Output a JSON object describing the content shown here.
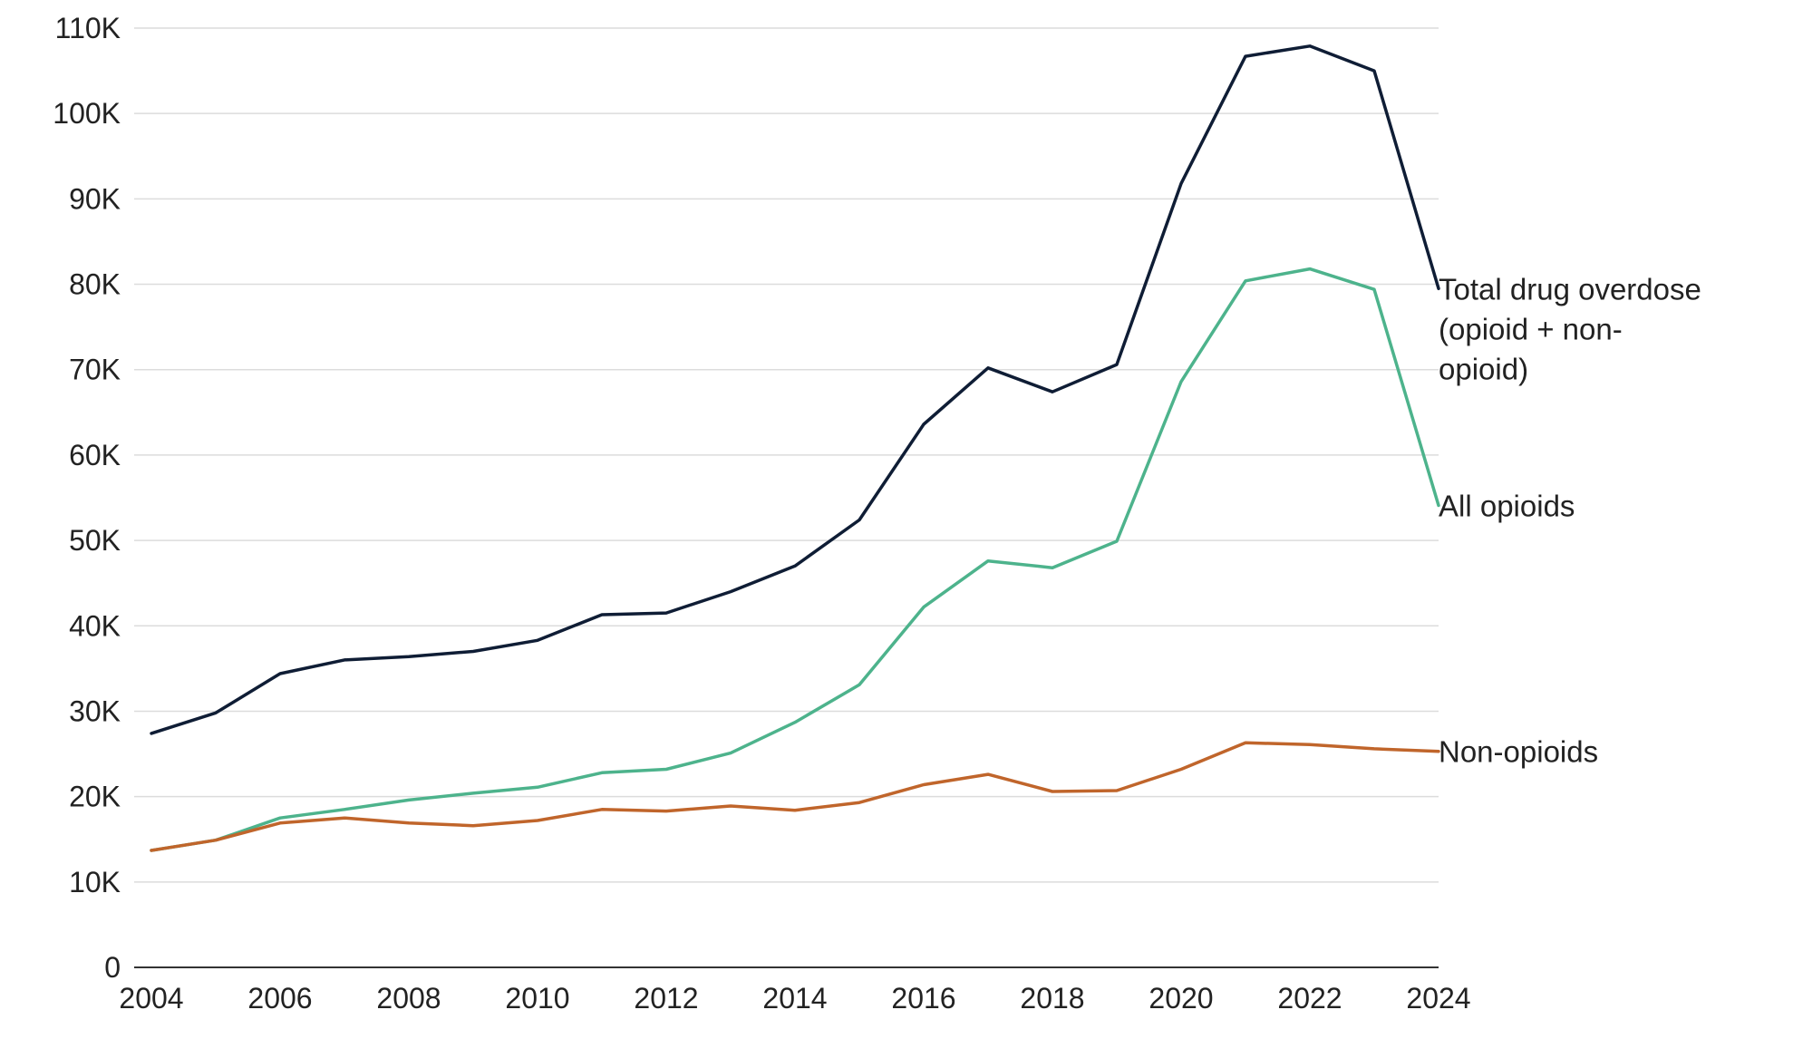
{
  "chart_data": {
    "type": "line",
    "title": "",
    "xlabel": "",
    "ylabel": "",
    "x": [
      2004,
      2005,
      2006,
      2007,
      2008,
      2009,
      2010,
      2011,
      2012,
      2013,
      2014,
      2015,
      2016,
      2017,
      2018,
      2019,
      2020,
      2021,
      2022,
      2023,
      2024
    ],
    "xlim": [
      2004,
      2024
    ],
    "ylim": [
      0,
      110000
    ],
    "x_ticks": [
      2004,
      2006,
      2008,
      2010,
      2012,
      2014,
      2016,
      2018,
      2020,
      2022,
      2024
    ],
    "x_tick_labels": [
      "2004",
      "2006",
      "2008",
      "2010",
      "2012",
      "2014",
      "2016",
      "2018",
      "2020",
      "2022",
      "2024"
    ],
    "y_ticks": [
      0,
      10000,
      20000,
      30000,
      40000,
      50000,
      60000,
      70000,
      80000,
      90000,
      100000,
      110000
    ],
    "y_tick_labels": [
      "0",
      "10K",
      "20K",
      "30K",
      "40K",
      "50K",
      "60K",
      "70K",
      "80K",
      "90K",
      "100K",
      "110K"
    ],
    "grid": true,
    "legend": "direct labels at right end of each line",
    "series": [
      {
        "name": "Total drug overdose (opioid + non-opioid)",
        "label_lines": [
          "Total drug overdose",
          "(opioid + non-",
          "opioid)"
        ],
        "color": "#0f1d35",
        "values": [
          27400,
          29800,
          34400,
          36000,
          36400,
          37000,
          38300,
          41300,
          41500,
          44000,
          47000,
          52400,
          63600,
          70200,
          67400,
          70600,
          91800,
          106700,
          107900,
          105000,
          79500
        ]
      },
      {
        "name": "All opioids",
        "label_lines": [
          "All opioids"
        ],
        "color": "#4db38c",
        "values": [
          13700,
          14900,
          17500,
          18500,
          19600,
          20400,
          21100,
          22800,
          23200,
          25100,
          28700,
          33100,
          42200,
          47600,
          46800,
          49900,
          68600,
          80400,
          81800,
          79400,
          54100
        ]
      },
      {
        "name": "Non-opioids",
        "label_lines": [
          "Non-opioids"
        ],
        "color": "#c0652b",
        "values": [
          13700,
          14900,
          16900,
          17500,
          16900,
          16600,
          17200,
          18500,
          18300,
          18900,
          18400,
          19300,
          21400,
          22600,
          20600,
          20700,
          23200,
          26300,
          26100,
          25600,
          25300
        ]
      }
    ]
  }
}
